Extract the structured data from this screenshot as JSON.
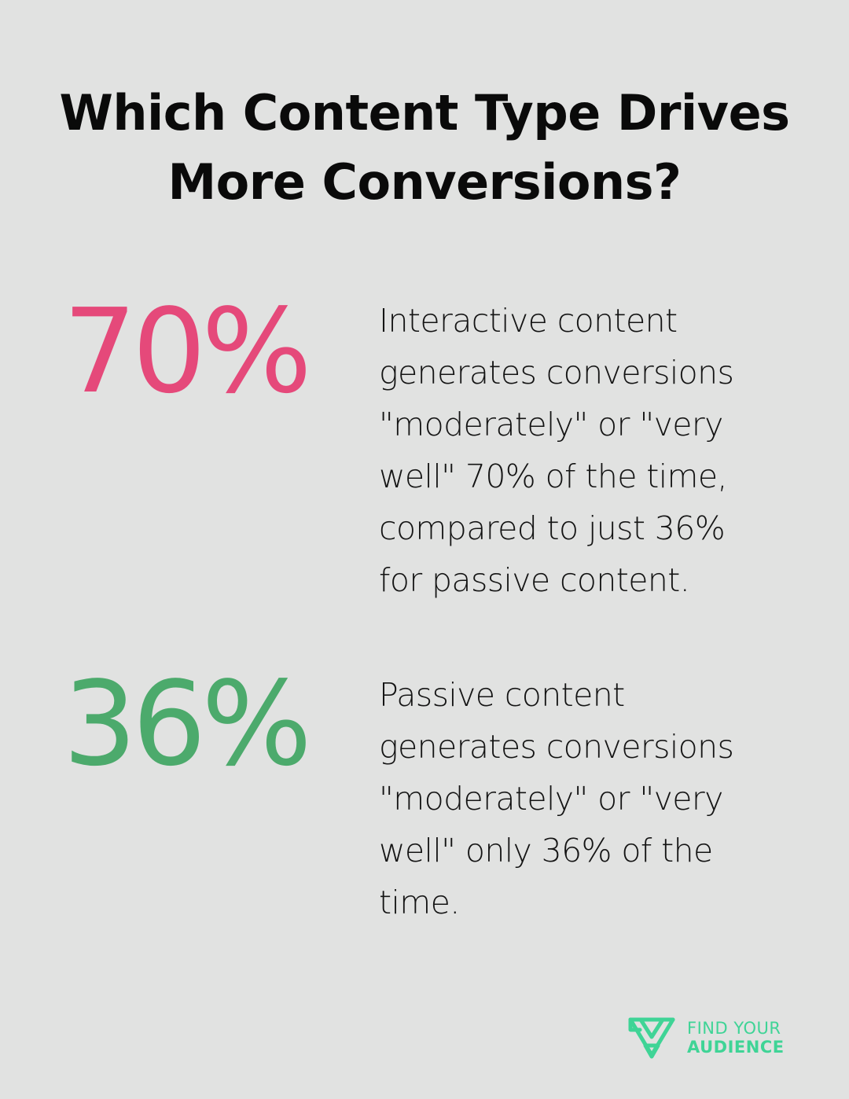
{
  "title": {
    "line1": "Which Content Type Drives",
    "line2": "More Conversions?"
  },
  "stats": [
    {
      "value": "70%",
      "color": "#e5497a",
      "description_lines": [
        "Interactive content",
        "generates conversions",
        "\"moderately\" or \"very",
        "well\" 70% of the time,",
        "compared to just 36%",
        "for passive content."
      ]
    },
    {
      "value": "36%",
      "color": "#4caa6c",
      "description_lines": [
        "Passive content",
        "generates conversions",
        "\"moderately\" or \"very",
        "well\" only 36% of the",
        "time."
      ]
    }
  ],
  "logo": {
    "line1": "FIND YOUR",
    "line2": "AUDIENCE",
    "color": "#3fd496",
    "icon": "triangle-logo-icon"
  }
}
